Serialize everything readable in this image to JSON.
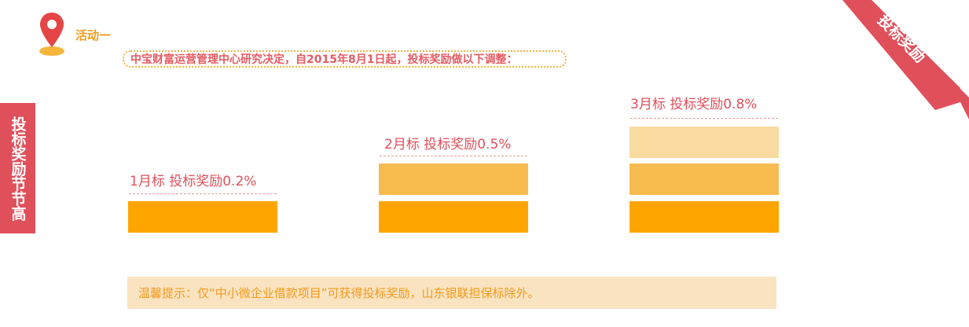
{
  "activity": {
    "title": "活动一",
    "decision": "中宝财富运营管理中心研究决定，自2015年8月1日起，投标奖励做以下调整："
  },
  "side_tab": {
    "text": "投标奖励节节高"
  },
  "corner_ribbon": {
    "text": "投标奖励"
  },
  "tiers": [
    {
      "label": "1月标   投标奖励0.2%",
      "months": 1,
      "reward_percent": 0.2,
      "bar_levels": 1
    },
    {
      "label": "2月标   投标奖励0.5%",
      "months": 2,
      "reward_percent": 0.5,
      "bar_levels": 2
    },
    {
      "label": "3月标   投标奖励0.8%",
      "months": 3,
      "reward_percent": 0.8,
      "bar_levels": 3
    }
  ],
  "tip": {
    "text": "温馨提示：仅“中小微企业借款项目”可获得投标奖励，山东银联担保标除外。"
  },
  "colors": {
    "accent_red": "#e0505b",
    "orange": "#ffa500",
    "orange_mid": "#f8bb4f",
    "orange_light": "#f9dba0",
    "tip_bg": "#fae3c0",
    "tip_text": "#f29b1d"
  },
  "icons": {
    "pin": "location-pin-icon"
  }
}
